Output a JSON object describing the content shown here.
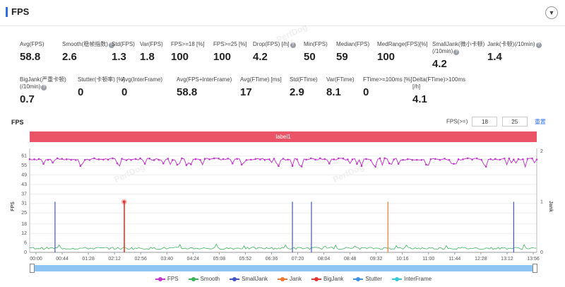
{
  "header": {
    "title": "FPS",
    "collapse_icon": "chevron-down-icon"
  },
  "watermark": "PerfDog",
  "metrics_row1": [
    {
      "label": "Avg(FPS)",
      "value": "58.8",
      "help": false
    },
    {
      "label": "Smooth(稳帧指数)",
      "value": "2.6",
      "help": true
    },
    {
      "label": "Std(FPS)",
      "value": "1.3",
      "help": false
    },
    {
      "label": "Var(FPS)",
      "value": "1.8",
      "help": false
    },
    {
      "label": "FPS>=18 [%]",
      "value": "100",
      "help": false
    },
    {
      "label": "FPS>=25 [%]",
      "value": "100",
      "help": false
    },
    {
      "label": "Drop(FPS) [/h]",
      "value": "4.2",
      "help": true
    },
    {
      "label": "Min(FPS)",
      "value": "50",
      "help": false
    },
    {
      "label": "Median(FPS)",
      "value": "59",
      "help": false
    },
    {
      "label": "MedRange(FPS)[%]",
      "value": "100",
      "help": false
    },
    {
      "label": "SmallJank(微小卡顿)(/10min)",
      "value": "4.2",
      "help": true
    },
    {
      "label": "Jank(卡顿)(/10min)",
      "value": "1.4",
      "help": true
    }
  ],
  "metrics_row2": [
    {
      "label": "BigJank(严重卡顿)(/10min)",
      "value": "0.7",
      "help": true
    },
    {
      "label": "Stutter(卡顿率) [%]",
      "value": "0",
      "help": false
    },
    {
      "label": "Avg(InterFrame)",
      "value": "0",
      "help": false
    },
    {
      "label": "Avg(FPS+InterFrame)",
      "value": "58.8",
      "help": false
    },
    {
      "label": "Avg(FTime) [ms]",
      "value": "17",
      "help": false
    },
    {
      "label": "Std(FTime)",
      "value": "2.9",
      "help": false
    },
    {
      "label": "Var(FTime)",
      "value": "8.1",
      "help": false
    },
    {
      "label": "FTime>=100ms [%]",
      "value": "0",
      "help": false
    },
    {
      "label": "Delta(FTime)>100ms [/h]",
      "value": "4.1",
      "help": false
    }
  ],
  "chart_section": {
    "title": "FPS",
    "filter_label": "FPS(>=)",
    "filter_low": "18",
    "filter_high": "25",
    "reset_label": "重置",
    "label_bar": "label1"
  },
  "chart_data": {
    "type": "line",
    "ylabel": "FPS",
    "y2label": "Jank",
    "y_ticks": [
      0,
      6,
      12,
      18,
      25,
      31,
      37,
      43,
      49,
      55,
      61
    ],
    "y2_ticks": [
      0,
      1,
      2
    ],
    "ylim": [
      0,
      64
    ],
    "y2lim": [
      0,
      2
    ],
    "x_ticks": [
      "00:00",
      "00:44",
      "01:28",
      "02:12",
      "02:56",
      "03:40",
      "04:24",
      "05:08",
      "05:52",
      "06:36",
      "07:20",
      "08:04",
      "08:48",
      "09:32",
      "10:16",
      "11:00",
      "11:44",
      "12:28",
      "13:12",
      "13:56"
    ],
    "x_range_sec": [
      0,
      880
    ],
    "fps_baseline": 59,
    "fps_dips_sec": [
      40,
      90,
      155,
      200,
      260,
      300,
      370,
      430,
      455,
      470,
      520,
      575,
      600,
      640,
      690,
      740,
      790,
      860
    ],
    "smooth_baseline": 2.6,
    "small_jank_sec": [
      44,
      456,
      489,
      840
    ],
    "jank_sec": [
      164,
      621
    ],
    "big_jank_sec": [
      164
    ],
    "series": [
      {
        "name": "FPS",
        "color": "#c13ac9"
      },
      {
        "name": "Smooth",
        "color": "#3cb45a"
      },
      {
        "name": "SmallJank",
        "color": "#4453c4"
      },
      {
        "name": "Jank",
        "color": "#f07832"
      },
      {
        "name": "BigJank",
        "color": "#e03636"
      },
      {
        "name": "Stutter",
        "color": "#3d8fe0"
      },
      {
        "name": "InterFrame",
        "color": "#36c9d6"
      }
    ]
  }
}
